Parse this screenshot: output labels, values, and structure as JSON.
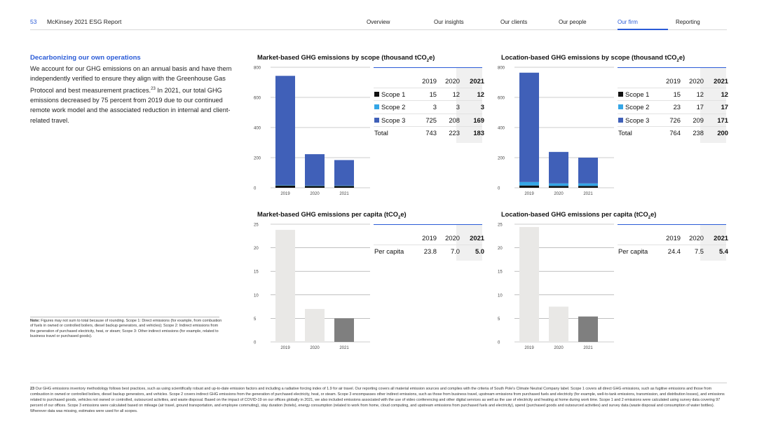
{
  "header": {
    "page_number": "53",
    "report_title": "McKinsey 2021 ESG Report",
    "nav": [
      "Overview",
      "Our insights",
      "Our clients",
      "Our people",
      "Our firm",
      "Reporting"
    ],
    "active_nav": "Our firm"
  },
  "intro": {
    "title": "Decarbonizing our own operations",
    "body": "We account for our GHG emissions on an annual basis and have them independently verified to ensure they align with the Greenhouse Gas Protocol and best measurement practices.",
    "footnote_ref": "23",
    "body2": "In 2021, our total GHG emissions decreased by 75 percent from 2019 due to our continued remote work model and the associated reduction in internal and client-related travel."
  },
  "note": {
    "label": "Note:",
    "text": "Figures may not sum to total because of rounding. Scope 1: Direct emissions (for example, from combustion of fuels in owned or controlled boilers, diesel backup generators, and vehicles); Scope 2: Indirect emissions from the generation of purchased electricity, heat, or steam; Scope 3: Other indirect emissions (for example, related to business travel or purchased goods)."
  },
  "footnote": {
    "number": "23",
    "text": "Our GHG emissions inventory methodology follows best practices, such as using scientifically robust and up-to-date emission factors and including a radiative forcing index of 1.9 for air travel. Our reporting covers all material emission sources and complies with the criteria of South Pole's Climate Neutral Company label. Scope 1 covers all direct GHG emissions, such as fugitive emissions and those from combustion in owned or controlled boilers, diesel backup generators, and vehicles. Scope 2 covers indirect GHG emissions from the generation of purchased electricity, heat, or steam. Scope 3 encompasses other indirect emissions, such as those from business travel, upstream emissions from purchased fuels and electricity (for example, well-to-tank emissions, transmission, and distribution losses), and emissions related to purchased goods, vehicles not owned or controlled, outsourced activities, and waste disposal. Based on the impact of COVID-19 on our offices globally in 2021, we also included emissions associated with the use of video conferencing and other digital services as well as the use of electricity and heating at home during work time. Scope 1 and 2 emissions were calculated using survey data covering 97 percent of our offices. Scope 3 emissions were calculated based on mileage (air travel, ground transportation, and employee commuting), stay duration (hotels), energy consumption (related to work from home, cloud computing, and upstream emissions from purchased fuels and electricity), spend (purchased goods and outsourced activities) and survey data (waste disposal and consumption of water bottles). Wherever data was missing, estimates were used for all scopes."
  },
  "colors": {
    "accent": "#2a5bd7",
    "scope1": "#111111",
    "scope2": "#35a6e6",
    "scope3": "#4060b8",
    "capita_2019": "#e9e8e6",
    "capita_2020": "#e9e8e6",
    "capita_2021": "#7f7f7f"
  },
  "chart_data": [
    {
      "id": "market_scope",
      "type": "bar",
      "stacked": true,
      "title": "Market-based GHG emissions by scope (thousand tCO",
      "title_sub": "2",
      "title_end": "e)",
      "categories": [
        "2019",
        "2020",
        "2021"
      ],
      "ylim": [
        0,
        800
      ],
      "yticks": [
        "0",
        "200",
        "400",
        "600",
        "800"
      ],
      "series": [
        {
          "name": "Scope 1",
          "values": [
            15,
            12,
            12
          ]
        },
        {
          "name": "Scope 2",
          "values": [
            3,
            3,
            3
          ]
        },
        {
          "name": "Scope 3",
          "values": [
            725,
            208,
            169
          ]
        }
      ],
      "table": {
        "years": [
          "2019",
          "2020",
          "2021"
        ],
        "rows": [
          {
            "label": "Scope 1",
            "values": [
              "15",
              "12",
              "12"
            ]
          },
          {
            "label": "Scope 2",
            "values": [
              "3",
              "3",
              "3"
            ]
          },
          {
            "label": "Scope 3",
            "values": [
              "725",
              "208",
              "169"
            ]
          },
          {
            "label": "Total",
            "values": [
              "743",
              "223",
              "183"
            ]
          }
        ]
      }
    },
    {
      "id": "location_scope",
      "type": "bar",
      "stacked": true,
      "title": "Location-based GHG emissions by scope (thousand tCO",
      "title_sub": "2",
      "title_end": "e)",
      "categories": [
        "2019",
        "2020",
        "2021"
      ],
      "ylim": [
        0,
        800
      ],
      "yticks": [
        "0",
        "200",
        "400",
        "600",
        "800"
      ],
      "series": [
        {
          "name": "Scope 1",
          "values": [
            15,
            12,
            12
          ]
        },
        {
          "name": "Scope 2",
          "values": [
            23,
            17,
            17
          ]
        },
        {
          "name": "Scope 3",
          "values": [
            726,
            209,
            171
          ]
        }
      ],
      "table": {
        "years": [
          "2019",
          "2020",
          "2021"
        ],
        "rows": [
          {
            "label": "Scope 1",
            "values": [
              "15",
              "12",
              "12"
            ]
          },
          {
            "label": "Scope 2",
            "values": [
              "23",
              "17",
              "17"
            ]
          },
          {
            "label": "Scope 3",
            "values": [
              "726",
              "209",
              "171"
            ]
          },
          {
            "label": "Total",
            "values": [
              "764",
              "238",
              "200"
            ]
          }
        ]
      }
    },
    {
      "id": "market_capita",
      "type": "bar",
      "title": "Market-based GHG emissions per capita (tCO",
      "title_sub": "2",
      "title_end": "e)",
      "categories": [
        "2019",
        "2020",
        "2021"
      ],
      "ylim": [
        0,
        25
      ],
      "yticks": [
        "0",
        "5",
        "10",
        "15",
        "20",
        "25"
      ],
      "values": [
        23.8,
        7.0,
        5.0
      ],
      "table": {
        "years": [
          "2019",
          "2020",
          "2021"
        ],
        "rows": [
          {
            "label": "Per capita",
            "values": [
              "23.8",
              "7.0",
              "5.0"
            ]
          }
        ]
      }
    },
    {
      "id": "location_capita",
      "type": "bar",
      "title": "Location-based GHG emissions per capita (tCO",
      "title_sub": "2",
      "title_end": "e)",
      "categories": [
        "2019",
        "2020",
        "2021"
      ],
      "ylim": [
        0,
        25
      ],
      "yticks": [
        "0",
        "5",
        "10",
        "15",
        "20",
        "25"
      ],
      "values": [
        24.4,
        7.5,
        5.4
      ],
      "table": {
        "years": [
          "2019",
          "2020",
          "2021"
        ],
        "rows": [
          {
            "label": "Per capita",
            "values": [
              "24.4",
              "7.5",
              "5.4"
            ]
          }
        ]
      }
    }
  ]
}
